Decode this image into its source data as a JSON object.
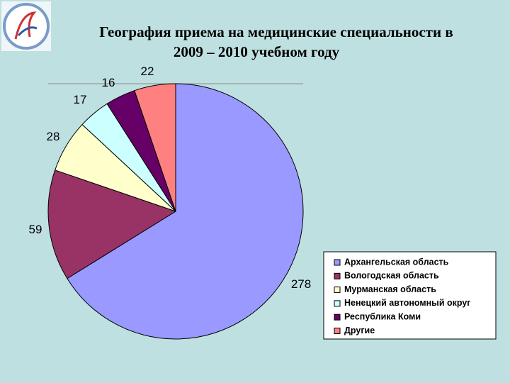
{
  "chart_data": {
    "type": "pie",
    "title": [
      "География приема на медицинские специальности в",
      "2009 – 2010 учебном году"
    ],
    "categories": [
      "Архангельская область",
      "Вологодская область",
      "Мурманская область",
      "Ненецкий автономный округ",
      "Республика Коми",
      "Другие"
    ],
    "values": [
      278,
      59,
      28,
      17,
      16,
      22
    ],
    "colors": [
      "#9999ff",
      "#993366",
      "#ffffcc",
      "#ccffff",
      "#660066",
      "#ff8080"
    ],
    "legend": "right"
  }
}
